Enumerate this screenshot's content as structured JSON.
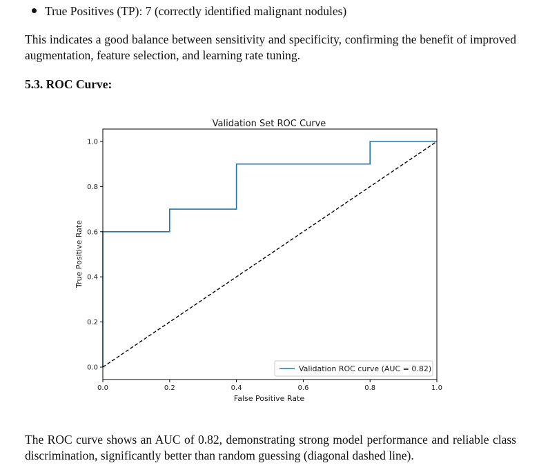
{
  "bullet": {
    "text": "True Positives (TP): 7 (correctly identified malignant nodules)"
  },
  "paragraph_1": "This indicates a good balance between sensitivity and specificity, confirming the benefit of improved augmentation, feature selection, and learning rate tuning.",
  "section_heading": "5.3. ROC Curve:",
  "chart_data": {
    "type": "line",
    "title": "Validation Set ROC Curve",
    "xlabel": "False Positive Rate",
    "ylabel": "True Positive Rate",
    "xlim": [
      0,
      1
    ],
    "ylim": [
      0,
      1
    ],
    "x_ticks": [
      "0.0",
      "0.2",
      "0.4",
      "0.6",
      "0.8",
      "1.0"
    ],
    "y_ticks": [
      "0.0",
      "0.2",
      "0.4",
      "0.6",
      "0.8",
      "1.0"
    ],
    "series": [
      {
        "name": "Validation ROC curve (AUC = 0.82)",
        "style": "step",
        "color": "#1f77b4",
        "x": [
          0.0,
          0.0,
          0.2,
          0.2,
          0.4,
          0.4,
          0.8,
          0.8,
          1.0
        ],
        "y": [
          0.0,
          0.6,
          0.6,
          0.7,
          0.7,
          0.9,
          0.9,
          1.0,
          1.0
        ]
      },
      {
        "name": "random guess",
        "style": "dashed",
        "color": "#000000",
        "x": [
          0,
          1
        ],
        "y": [
          0,
          1
        ]
      }
    ],
    "legend": {
      "position": "lower-right",
      "entry": "Validation ROC curve (AUC = 0.82)"
    },
    "grid": false
  },
  "paragraph_2": "The ROC curve shows an AUC of 0.82, demonstrating strong model performance and reliable class discrimination, significantly better than random guessing (diagonal dashed line)."
}
